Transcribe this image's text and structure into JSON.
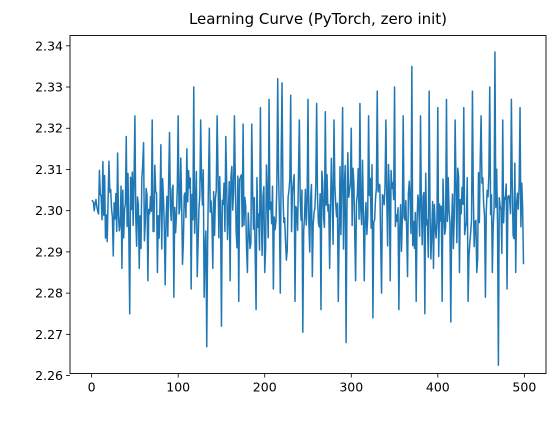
{
  "chart_data": {
    "type": "line",
    "title": "Learning Curve (PyTorch, zero init)",
    "xlabel": "",
    "ylabel": "",
    "xlim": [
      -25,
      525
    ],
    "ylim": [
      2.2605,
      2.3425
    ],
    "x_ticks": [
      "0",
      "100",
      "200",
      "300",
      "400",
      "500"
    ],
    "y_ticks": [
      "2.26",
      "2.27",
      "2.28",
      "2.29",
      "2.30",
      "2.31",
      "2.32",
      "2.33",
      "2.34"
    ],
    "grid": false,
    "legend": "none",
    "colors": {
      "line": "#1f77b4",
      "axes": "#000000",
      "background": "#ffffff"
    },
    "series": [
      {
        "x": [
          0,
          2,
          4,
          6,
          8,
          10,
          12,
          15,
          18,
          20,
          25,
          30,
          35,
          40,
          44,
          50,
          55,
          60,
          65,
          70,
          76,
          80,
          85,
          90,
          95,
          100,
          105,
          110,
          115,
          118,
          122,
          126,
          130,
          133,
          136,
          140,
          145,
          150,
          155,
          160,
          165,
          170,
          175,
          180,
          185,
          190,
          195,
          200,
          205,
          210,
          215,
          218,
          220,
          225,
          230,
          235,
          240,
          244,
          250,
          255,
          260,
          265,
          270,
          275,
          280,
          285,
          290,
          294,
          300,
          305,
          310,
          315,
          320,
          325,
          330,
          335,
          340,
          345,
          350,
          355,
          360,
          365,
          370,
          375,
          380,
          385,
          390,
          395,
          400,
          405,
          410,
          415,
          420,
          425,
          430,
          435,
          440,
          445,
          450,
          455,
          460,
          463,
          466,
          470,
          475,
          480,
          485,
          490,
          495,
          499
        ],
        "y": [
          2.3025,
          2.3021,
          2.3018,
          2.301,
          2.2992,
          2.304,
          2.2978,
          2.3085,
          2.2925,
          2.312,
          2.289,
          2.314,
          2.286,
          2.318,
          2.275,
          2.323,
          2.286,
          2.3165,
          2.283,
          2.322,
          2.285,
          2.316,
          2.282,
          2.319,
          2.279,
          2.323,
          2.287,
          2.315,
          2.281,
          2.33,
          2.284,
          2.322,
          2.279,
          2.267,
          2.32,
          2.286,
          2.323,
          2.272,
          2.318,
          2.283,
          2.323,
          2.278,
          2.321,
          2.285,
          2.321,
          2.276,
          2.325,
          2.285,
          2.327,
          2.281,
          2.332,
          2.28,
          2.331,
          2.288,
          2.328,
          2.278,
          2.322,
          2.2705,
          2.327,
          2.284,
          2.326,
          2.276,
          2.324,
          2.286,
          2.322,
          2.278,
          2.325,
          2.268,
          2.32,
          2.283,
          2.326,
          2.283,
          2.323,
          2.274,
          2.329,
          2.28,
          2.322,
          2.283,
          2.33,
          2.276,
          2.323,
          2.284,
          2.335,
          2.278,
          2.323,
          2.275,
          2.329,
          2.286,
          2.325,
          2.278,
          2.327,
          2.273,
          2.322,
          2.285,
          2.325,
          2.278,
          2.329,
          2.285,
          2.323,
          2.279,
          2.33,
          2.285,
          2.3385,
          2.2625,
          2.322,
          2.281,
          2.327,
          2.285,
          2.325,
          2.287
        ]
      }
    ]
  }
}
